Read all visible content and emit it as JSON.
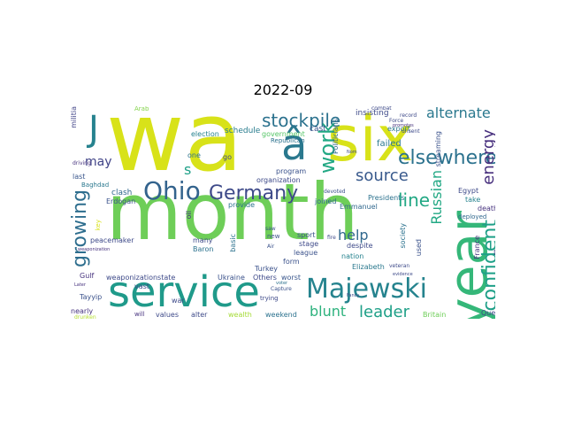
{
  "title": "2022-09",
  "words": [
    {
      "text": "wa",
      "color": "#d8e219"
    },
    {
      "text": "month",
      "color": "#6ece58"
    },
    {
      "text": "six",
      "color": "#d8e219"
    },
    {
      "text": "service",
      "color": "#1f9a8a"
    },
    {
      "text": "year",
      "color": "#35b779"
    },
    {
      "text": "Majewski",
      "color": "#25838e"
    },
    {
      "text": "â",
      "color": "#2a788e"
    },
    {
      "text": "J",
      "color": "#26828e"
    },
    {
      "text": "Ohio",
      "color": "#33638d"
    },
    {
      "text": "Germany",
      "color": "#3e4a89"
    },
    {
      "text": "stockpile",
      "color": "#2c728e"
    },
    {
      "text": "alternate",
      "color": "#2a788e"
    },
    {
      "text": "elsewhere",
      "color": "#2c728e"
    },
    {
      "text": "work",
      "color": "#22a884"
    },
    {
      "text": "source",
      "color": "#38598c"
    },
    {
      "text": "confident",
      "color": "#1fa088"
    },
    {
      "text": "energy",
      "color": "#472f7d"
    },
    {
      "text": "growing",
      "color": "#2e6e8e"
    },
    {
      "text": "line",
      "color": "#22a884"
    },
    {
      "text": "leader",
      "color": "#1fa088"
    },
    {
      "text": "blunt",
      "color": "#2db27d"
    },
    {
      "text": "help",
      "color": "#31688e"
    },
    {
      "text": "Russian",
      "color": "#22a884"
    },
    {
      "text": "may",
      "color": "#404387"
    },
    {
      "text": "s",
      "color": "#1fa088"
    },
    {
      "text": "schedule",
      "color": "#287c8e"
    },
    {
      "text": "government",
      "color": "#56c667"
    },
    {
      "text": "cast",
      "color": "#3b528b"
    },
    {
      "text": "insisting",
      "color": "#3e4a89"
    },
    {
      "text": "failed",
      "color": "#2a788e"
    },
    {
      "text": "election",
      "color": "#26828e"
    },
    {
      "text": "Republican",
      "color": "#2c728e"
    },
    {
      "text": "Politicians",
      "color": "#31688e"
    },
    {
      "text": "streaming",
      "color": "#3b528b"
    },
    {
      "text": "gathering",
      "color": "#46327e"
    },
    {
      "text": "export",
      "color": "#2a788e"
    },
    {
      "text": "militia",
      "color": "#404387"
    },
    {
      "text": "last",
      "color": "#39568c"
    },
    {
      "text": "Baghdad",
      "color": "#2a788e"
    },
    {
      "text": "clash",
      "color": "#31688e"
    },
    {
      "text": "Erdogan",
      "color": "#3b528b"
    },
    {
      "text": "program",
      "color": "#3b528b"
    },
    {
      "text": "organization",
      "color": "#3e4a89"
    },
    {
      "text": "joined",
      "color": "#31688e"
    },
    {
      "text": "Emmanuel",
      "color": "#31688e"
    },
    {
      "text": "Presidents",
      "color": "#2c728e"
    },
    {
      "text": "devoted",
      "color": "#3b528b"
    },
    {
      "text": "Egypt",
      "color": "#3e4a89"
    },
    {
      "text": "take",
      "color": "#26828e"
    },
    {
      "text": "death",
      "color": "#46327e"
    },
    {
      "text": "deployed",
      "color": "#31688e"
    },
    {
      "text": "oil",
      "color": "#46327e"
    },
    {
      "text": "provide",
      "color": "#2c728e"
    },
    {
      "text": "go",
      "color": "#3e4a89"
    },
    {
      "text": "one",
      "color": "#2c728e"
    },
    {
      "text": "sport",
      "color": "#3b528b"
    },
    {
      "text": "stage",
      "color": "#3e4a89"
    },
    {
      "text": "despite",
      "color": "#3e4a89"
    },
    {
      "text": "nation",
      "color": "#26828e"
    },
    {
      "text": "society",
      "color": "#2c728e"
    },
    {
      "text": "Elizabeth",
      "color": "#2a788e"
    },
    {
      "text": "France",
      "color": "#46327e"
    },
    {
      "text": "Deep",
      "color": "#3e4a89"
    },
    {
      "text": "peacemaker",
      "color": "#3e4a89"
    },
    {
      "text": "many",
      "color": "#3e4a89"
    },
    {
      "text": "Baron",
      "color": "#2c728e"
    },
    {
      "text": "basic",
      "color": "#2c728e"
    },
    {
      "text": "league",
      "color": "#3b528b"
    },
    {
      "text": "Turkey",
      "color": "#3b528b"
    },
    {
      "text": "form",
      "color": "#3b528b"
    },
    {
      "text": "worst",
      "color": "#39568c"
    },
    {
      "text": "Others",
      "color": "#3e4a89"
    },
    {
      "text": "Ukraine",
      "color": "#3b528b"
    },
    {
      "text": "weaponizationstate",
      "color": "#3e4a89"
    },
    {
      "text": "Gulf",
      "color": "#46327e"
    },
    {
      "text": "Tayyip",
      "color": "#3b528b"
    },
    {
      "text": "nearly",
      "color": "#46327e"
    },
    {
      "text": "vast",
      "color": "#3e4a89"
    },
    {
      "text": "war",
      "color": "#3e4a89"
    },
    {
      "text": "values",
      "color": "#3e4a89"
    },
    {
      "text": "alter",
      "color": "#3e4a89"
    },
    {
      "text": "will",
      "color": "#46327e"
    },
    {
      "text": "wealth",
      "color": "#a5db36"
    },
    {
      "text": "weekend",
      "color": "#2c728e"
    },
    {
      "text": "trying",
      "color": "#3e4a89"
    },
    {
      "text": "used",
      "color": "#3b528b"
    },
    {
      "text": "Queen",
      "color": "#3e4a89"
    },
    {
      "text": "Britain",
      "color": "#6ece58"
    },
    {
      "text": "Arab",
      "color": "#84d44b"
    },
    {
      "text": "saw",
      "color": "#3b528b"
    },
    {
      "text": "new",
      "color": "#3b528b"
    },
    {
      "text": "Air",
      "color": "#3b528b"
    },
    {
      "text": "combat",
      "color": "#3e4a89"
    },
    {
      "text": "record",
      "color": "#3e4a89"
    },
    {
      "text": "Force",
      "color": "#3e4a89"
    },
    {
      "text": "unsent",
      "color": "#3e4a89"
    },
    {
      "text": "promotes",
      "color": "#46327e"
    },
    {
      "text": "Nom",
      "color": "#3e4a89"
    },
    {
      "text": "fire",
      "color": "#3e4a89"
    },
    {
      "text": "voter",
      "color": "#2c728e"
    },
    {
      "text": "Capture",
      "color": "#3b528b"
    },
    {
      "text": "Fancy",
      "color": "#3e4a89"
    },
    {
      "text": "veteran",
      "color": "#3e4a89"
    },
    {
      "text": "evidence",
      "color": "#3e4a89"
    },
    {
      "text": "driving",
      "color": "#46327e"
    },
    {
      "text": "Later",
      "color": "#46327e"
    },
    {
      "text": "weaponization",
      "color": "#46327e"
    },
    {
      "text": "drunken",
      "color": "#b5de2b"
    },
    {
      "text": "key",
      "color": "#d8e219"
    }
  ]
}
